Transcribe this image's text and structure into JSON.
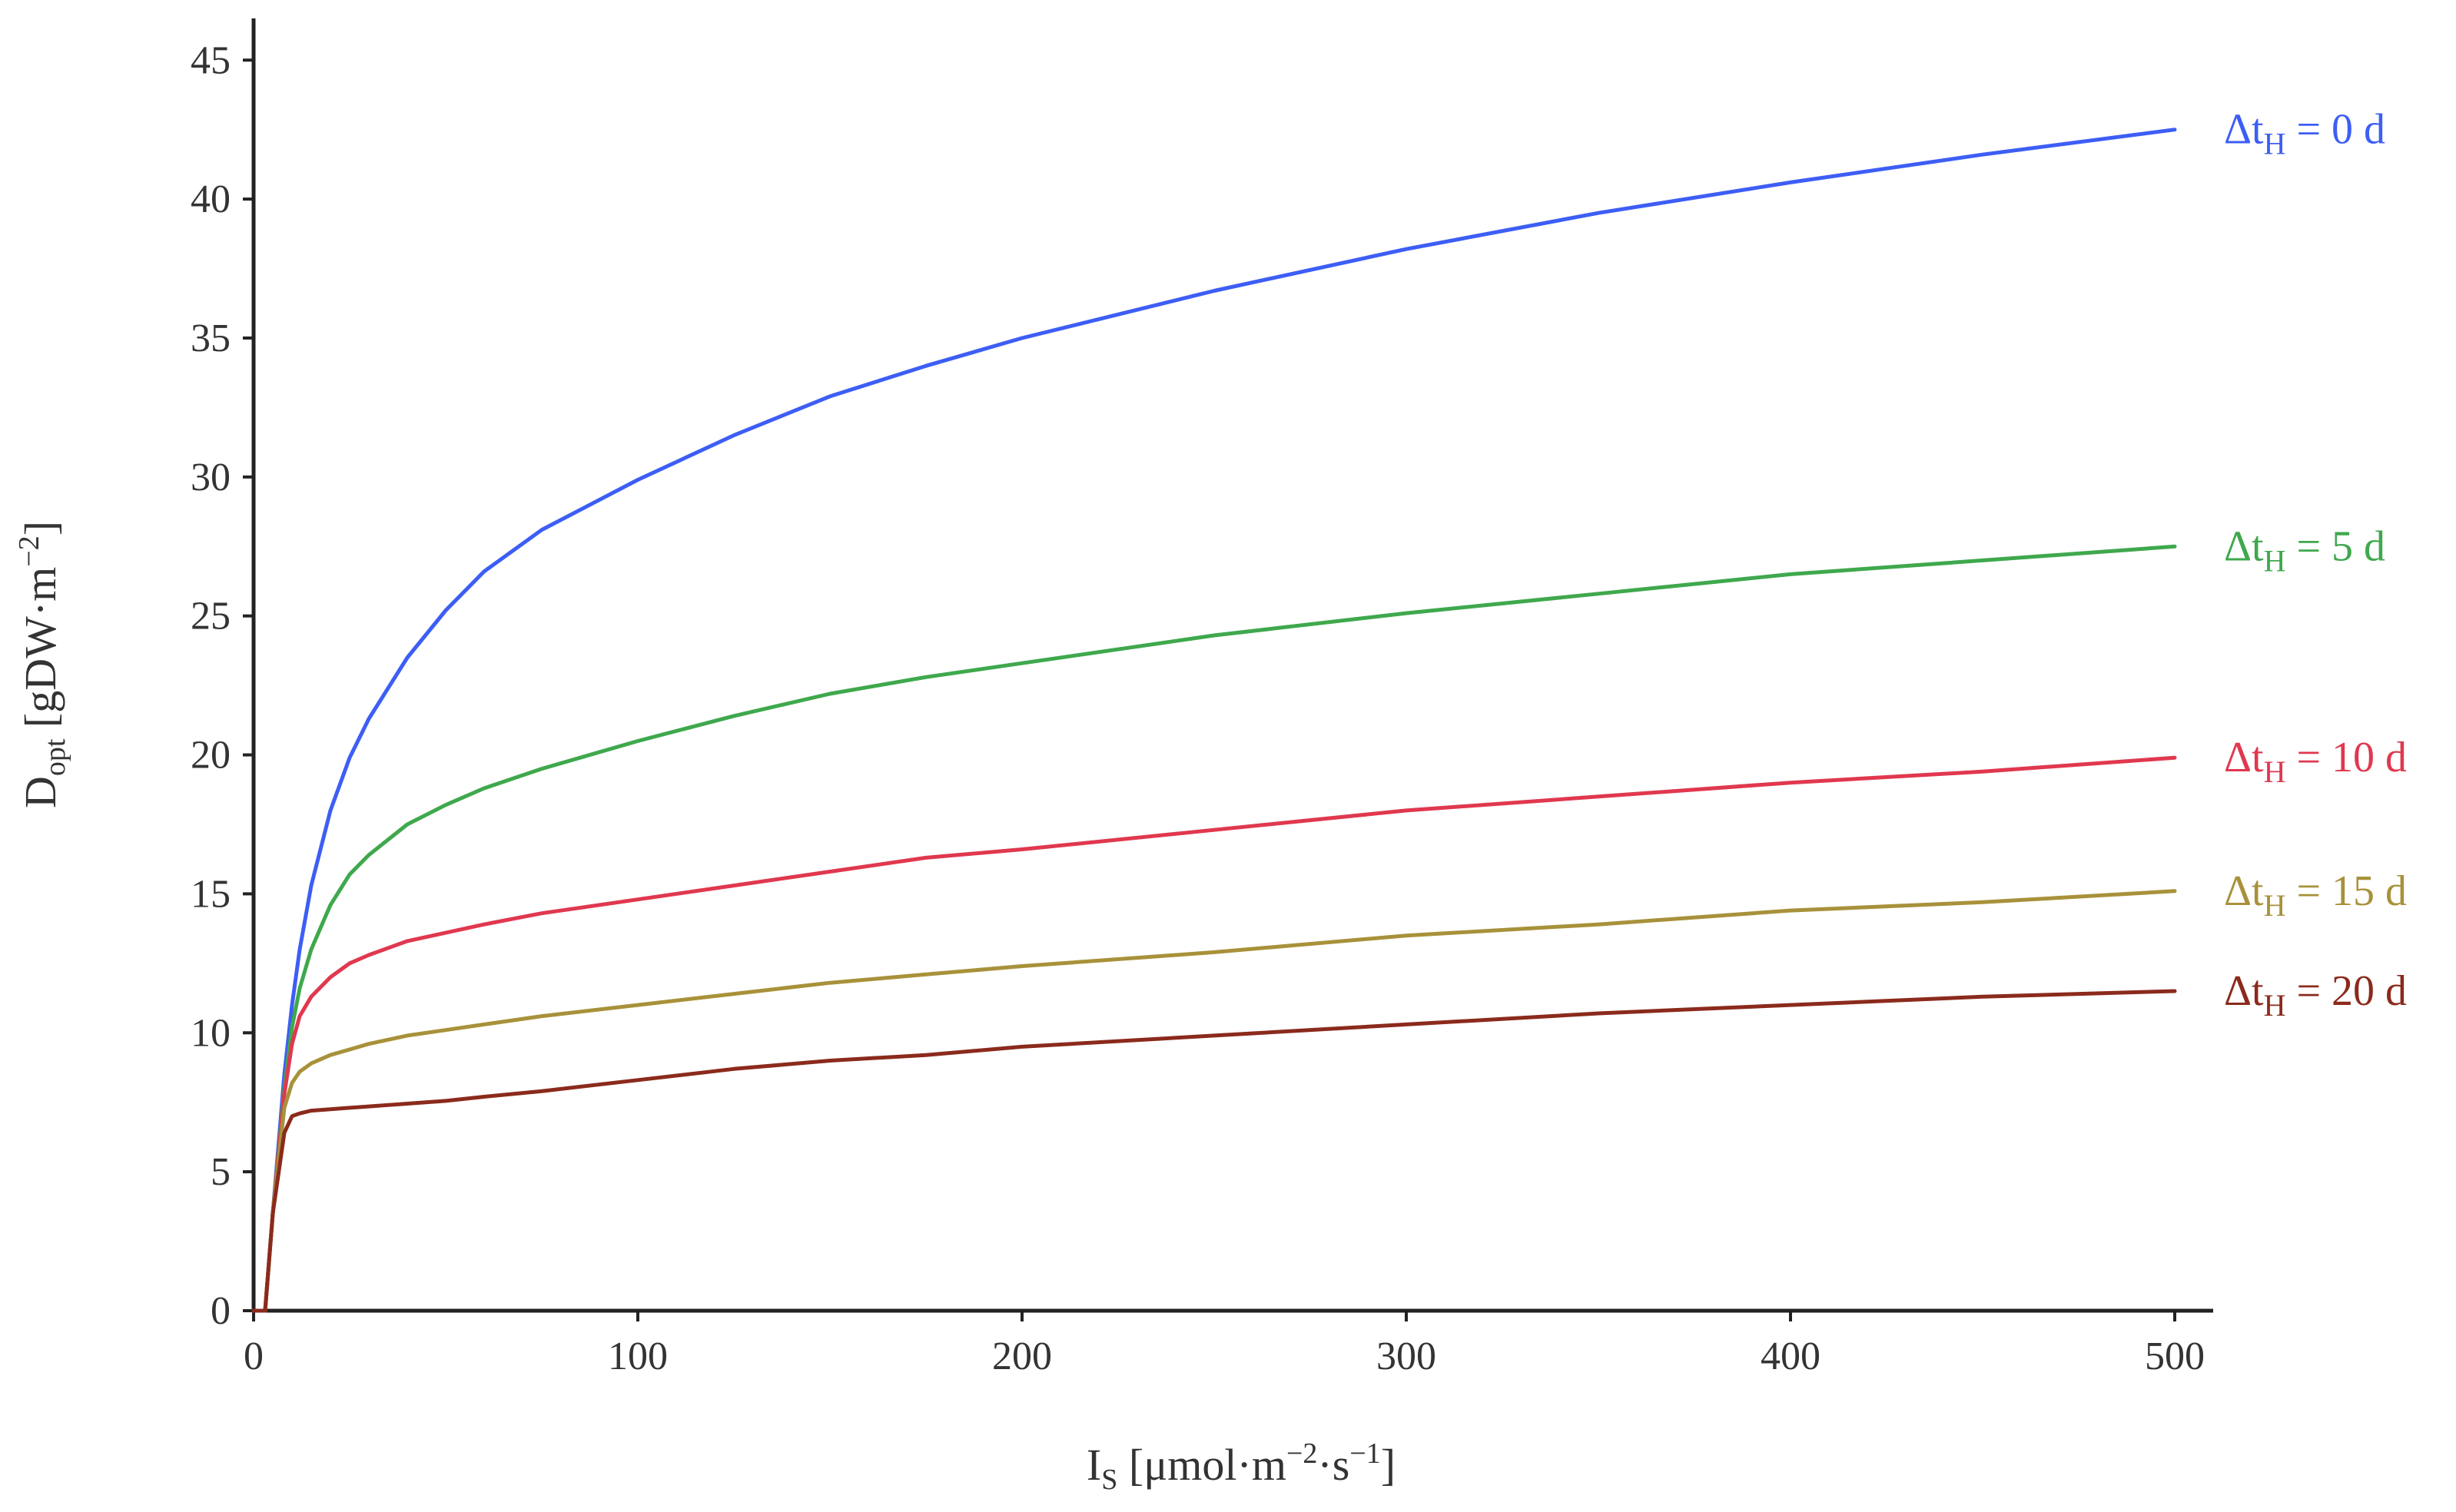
{
  "chart_data": {
    "type": "line",
    "title": "",
    "xlabel": {
      "main": "I",
      "sub": "S",
      "rest": " [μmol·m",
      "sup1": "−2",
      "mid": "·s",
      "sup2": "−1",
      "end": "]"
    },
    "ylabel": {
      "main": "D",
      "sub": "opt",
      "rest": " [gDW·m",
      "sup": "−2",
      "end": "]"
    },
    "xlim": [
      0,
      510
    ],
    "ylim": [
      0,
      46.5
    ],
    "x_ticks": [
      0,
      100,
      200,
      300,
      400,
      500
    ],
    "y_ticks": [
      0,
      5,
      10,
      15,
      20,
      25,
      30,
      35,
      40,
      45
    ],
    "grid": false,
    "legend": "inline-labels-right",
    "x": [
      0,
      3,
      5,
      8,
      10,
      12,
      15,
      20,
      25,
      30,
      40,
      50,
      60,
      75,
      100,
      125,
      150,
      175,
      200,
      250,
      300,
      350,
      400,
      450,
      500
    ],
    "series": [
      {
        "name": "Δt_H = 0 d",
        "label": {
          "prefix": "Δt",
          "sub": "H",
          "suffix": " = 0 d"
        },
        "color": "#3d5ef5",
        "values": [
          0,
          0,
          3.5,
          8.5,
          11,
          13,
          15.3,
          18,
          19.9,
          21.3,
          23.5,
          25.2,
          26.6,
          28.1,
          29.9,
          31.5,
          32.9,
          34.0,
          35.0,
          36.7,
          38.2,
          39.5,
          40.6,
          41.6,
          42.5
        ]
      },
      {
        "name": "Δt_H = 5 d",
        "label": {
          "prefix": "Δt",
          "sub": "H",
          "suffix": " = 5 d"
        },
        "color": "#3fa84d",
        "values": [
          0,
          0,
          3.5,
          8.0,
          10.2,
          11.6,
          13.0,
          14.6,
          15.7,
          16.4,
          17.5,
          18.2,
          18.8,
          19.5,
          20.5,
          21.4,
          22.2,
          22.8,
          23.3,
          24.3,
          25.1,
          25.8,
          26.5,
          27.0,
          27.5
        ]
      },
      {
        "name": "Δt_H = 10 d",
        "label": {
          "prefix": "Δt",
          "sub": "H",
          "suffix": " = 10 d"
        },
        "color": "#e0384f",
        "values": [
          0,
          0,
          3.5,
          7.8,
          9.6,
          10.6,
          11.3,
          12.0,
          12.5,
          12.8,
          13.3,
          13.6,
          13.9,
          14.3,
          14.8,
          15.3,
          15.8,
          16.3,
          16.6,
          17.3,
          18.0,
          18.5,
          19.0,
          19.4,
          19.9
        ]
      },
      {
        "name": "Δt_H = 15 d",
        "label": {
          "prefix": "Δt",
          "sub": "H",
          "suffix": " = 15 d"
        },
        "color": "#a8913a",
        "values": [
          0,
          0,
          3.5,
          7.3,
          8.2,
          8.6,
          8.9,
          9.2,
          9.4,
          9.6,
          9.9,
          10.1,
          10.3,
          10.6,
          11.0,
          11.4,
          11.8,
          12.1,
          12.4,
          12.9,
          13.5,
          13.9,
          14.4,
          14.7,
          15.1
        ]
      },
      {
        "name": "Δt_H = 20 d",
        "label": {
          "prefix": "Δt",
          "sub": "H",
          "suffix": " = 20 d"
        },
        "color": "#8b2a1c",
        "values": [
          0,
          0,
          3.5,
          6.4,
          7.0,
          7.1,
          7.2,
          7.25,
          7.3,
          7.35,
          7.45,
          7.55,
          7.7,
          7.9,
          8.3,
          8.7,
          9.0,
          9.2,
          9.5,
          9.9,
          10.3,
          10.7,
          11.0,
          11.3,
          11.5
        ]
      }
    ]
  }
}
